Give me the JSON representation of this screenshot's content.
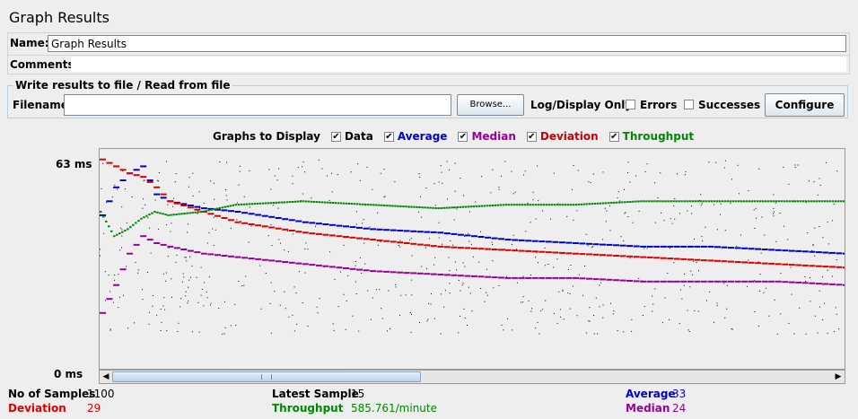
{
  "panel": {
    "title": "Graph Results"
  },
  "name_row": {
    "label": "Name:",
    "value": "Graph Results"
  },
  "comments_row": {
    "label": "Comments:",
    "value": ""
  },
  "file_group": {
    "legend": "Write results to file / Read from file",
    "filename_label": "Filename",
    "filename_value": "",
    "browse_label": "Browse...",
    "log_display_label": "Log/Display Only:",
    "errors_label": "Errors",
    "errors_checked": false,
    "successes_label": "Successes",
    "successes_checked": false,
    "configure_label": "Configure"
  },
  "graphs_to_display": {
    "label": "Graphs to Display",
    "items": [
      {
        "label": "Data",
        "checked": true,
        "color": "#000000"
      },
      {
        "label": "Average",
        "checked": true,
        "color": "#0000cc"
      },
      {
        "label": "Median",
        "checked": true,
        "color": "#990099"
      },
      {
        "label": "Deviation",
        "checked": true,
        "color": "#cc0000"
      },
      {
        "label": "Throughput",
        "checked": true,
        "color": "#008800"
      }
    ]
  },
  "axis": {
    "y_max_label": "63 ms",
    "y_min_label": "0 ms"
  },
  "stats": {
    "samples_label": "No of Samples",
    "samples_value": "1100",
    "deviation_label": "Deviation",
    "deviation_value": "29",
    "latest_label": "Latest Sample",
    "latest_value": "15",
    "throughput_label": "Throughput",
    "throughput_value": "585.761/minute",
    "average_label": "Average",
    "average_value": "33",
    "median_label": "Median",
    "median_value": "24"
  },
  "colors": {
    "data": "#000000",
    "average": "#0000cc",
    "median": "#990099",
    "deviation": "#dd0000",
    "throughput": "#008800"
  },
  "chart_data": {
    "type": "line",
    "title": "",
    "ylabel": "",
    "ylim": [
      0,
      63
    ],
    "x": [
      0,
      20,
      40,
      60,
      80,
      100,
      150,
      200,
      300,
      400,
      500,
      600,
      700,
      800,
      900,
      1000,
      1100
    ],
    "series": [
      {
        "name": "Average",
        "values": [
          44,
          52,
          56,
          58,
          50,
          48,
          46,
          45,
          42,
          40,
          39,
          37,
          36,
          35,
          35,
          34,
          33
        ]
      },
      {
        "name": "Median",
        "values": [
          16,
          24,
          33,
          38,
          36,
          35,
          33,
          32,
          30,
          28,
          27,
          26,
          26,
          25,
          25,
          25,
          24
        ]
      },
      {
        "name": "Deviation",
        "values": [
          60,
          58,
          56,
          55,
          52,
          48,
          45,
          42,
          39,
          37,
          35,
          34,
          33,
          32,
          31,
          30,
          29
        ]
      },
      {
        "name": "Throughput",
        "values": [
          45,
          38,
          40,
          43,
          45,
          44,
          45,
          47,
          48,
          47,
          46,
          47,
          47,
          48,
          48,
          48,
          48
        ]
      }
    ]
  }
}
